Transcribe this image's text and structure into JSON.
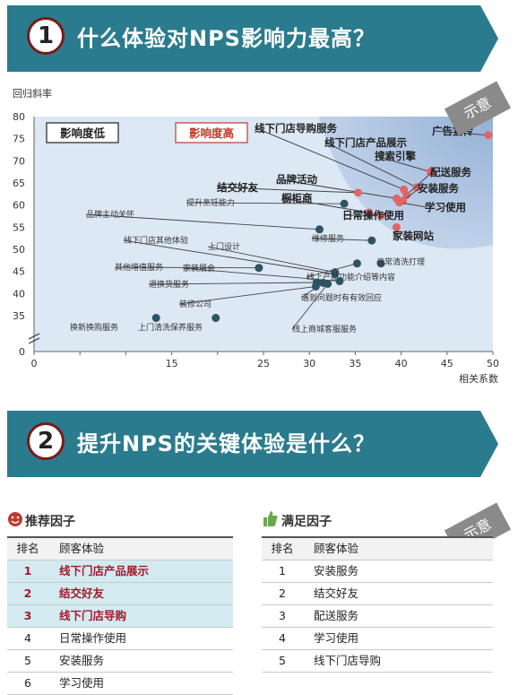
{
  "section1": {
    "number": "1",
    "title": "什么体验对NPS影响力最高？"
  },
  "section2": {
    "number": "2",
    "title": "提升NPS的关键体验是什么？"
  },
  "stamp_text": "示意",
  "colors": {
    "banner": "#2a7b8e",
    "high": "#e06666",
    "low": "#2e5464",
    "highlight_row": "#d3ebf0"
  },
  "chart_data": {
    "type": "scatter",
    "ylabel": "回归斜率",
    "xlabel": "相关系数",
    "xlim": [
      0,
      50
    ],
    "ylim": [
      0,
      80
    ],
    "x_ticks": [
      0,
      5,
      10,
      15,
      20,
      25,
      30,
      35,
      40,
      45,
      50
    ],
    "y_ticks": [
      0,
      35,
      40,
      45,
      50,
      55,
      60,
      65,
      70,
      75,
      80
    ],
    "axis_break": true,
    "legend": [
      {
        "label": "影响度低",
        "color": "#222222"
      },
      {
        "label": "影响度高",
        "color": "#c0392b"
      }
    ],
    "high_points": [
      {
        "label": "广告宣传",
        "x": 49.5,
        "y": 75.8
      },
      {
        "label": "线下门店导购服务",
        "x": 40.3,
        "y": 63.5
      },
      {
        "label": "线下门店产品展示",
        "x": 41.7,
        "y": 64
      },
      {
        "label": "搜索引擎",
        "x": 43.2,
        "y": 67.5
      },
      {
        "label": "配送服务",
        "x": 40.6,
        "y": 62.3
      },
      {
        "label": "品牌活动",
        "x": 39.5,
        "y": 61.5
      },
      {
        "label": "安装服务",
        "x": 40.2,
        "y": 61
      },
      {
        "label": "结交好友",
        "x": 35.3,
        "y": 62.8
      },
      {
        "label": "橱柜商",
        "x": 36.5,
        "y": 58.3
      },
      {
        "label": "学习使用",
        "x": 39.8,
        "y": 60.6
      },
      {
        "label": "日常操作使用",
        "x": 37.8,
        "y": 57.6
      },
      {
        "label": "家装网站",
        "x": 39.5,
        "y": 55
      }
    ],
    "low_points": [
      {
        "label": "提升烹饪能力",
        "x": 33.8,
        "y": 60.3
      },
      {
        "label": "品牌主动关怀",
        "x": 31.1,
        "y": 54.5
      },
      {
        "label": "维修服务",
        "x": 36.8,
        "y": 52
      },
      {
        "label": "线下门店其他体验",
        "x": 32.8,
        "y": 44.4
      },
      {
        "label": "上门设计",
        "x": 32.8,
        "y": 44.8
      },
      {
        "label": "日常清洗打理",
        "x": 37.8,
        "y": 46.8
      },
      {
        "label": "线上产品功能介绍等内容",
        "x": 35.2,
        "y": 46.8
      },
      {
        "label": "其他增值服务",
        "x": 24.5,
        "y": 45.8
      },
      {
        "label": "家装展会",
        "x": 33.3,
        "y": 42.8
      },
      {
        "label": "退换货服务",
        "x": 30.8,
        "y": 42.5
      },
      {
        "label": "遇到问题时有有效回应",
        "x": 31.5,
        "y": 42.4
      },
      {
        "label": "装修公司",
        "x": 30.7,
        "y": 41.6
      },
      {
        "label": "线上商城客服服务",
        "x": 32,
        "y": 42.2
      },
      {
        "label": "换新换购服务",
        "x": 13.3,
        "y": 32.8
      },
      {
        "label": "上门清洗保养服务",
        "x": 19.8,
        "y": 32.8
      }
    ]
  },
  "recommend_table": {
    "title": "推荐因子",
    "headers": [
      "排名",
      "顾客体验"
    ],
    "rows": [
      {
        "rank": "1",
        "item": "线下门店产品展示",
        "highlight": true
      },
      {
        "rank": "2",
        "item": "结交好友",
        "highlight": true
      },
      {
        "rank": "3",
        "item": "线下门店导购",
        "highlight": true
      },
      {
        "rank": "4",
        "item": "日常操作使用",
        "highlight": false
      },
      {
        "rank": "5",
        "item": "安装服务",
        "highlight": false
      },
      {
        "rank": "6",
        "item": "学习使用",
        "highlight": false
      }
    ]
  },
  "satisfy_table": {
    "title": "满足因子",
    "headers": [
      "排名",
      "顾客体验"
    ],
    "rows": [
      {
        "rank": "1",
        "item": "安装服务"
      },
      {
        "rank": "2",
        "item": "结交好友"
      },
      {
        "rank": "3",
        "item": "配送服务"
      },
      {
        "rank": "4",
        "item": "学习使用"
      },
      {
        "rank": "5",
        "item": "线下门店导购"
      }
    ]
  }
}
